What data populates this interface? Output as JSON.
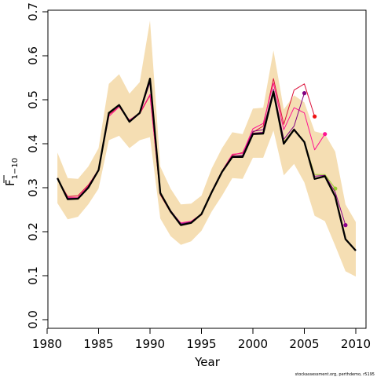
{
  "chart_data": {
    "type": "line",
    "xlabel": "Year",
    "ylabel": "F",
    "ylabel_subscript": "1−10",
    "xlim": [
      1980,
      2010
    ],
    "ylim": [
      0,
      0.7
    ],
    "x_ticks": [
      1980,
      1985,
      1990,
      1995,
      2000,
      2005,
      2010
    ],
    "y_ticks": [
      0.0,
      0.1,
      0.2,
      0.3,
      0.4,
      0.5,
      0.6,
      0.7
    ],
    "x_tick_labels": [
      "1980",
      "1985",
      "1990",
      "1995",
      "2000",
      "2005",
      "2010"
    ],
    "y_tick_labels": [
      "0.0",
      "0.1",
      "0.2",
      "0.3",
      "0.4",
      "0.5",
      "0.6",
      "0.7"
    ],
    "credit": "stockassessment.org, perthdemo, r5195",
    "band": {
      "color": "#f5deb3",
      "x": [
        1981,
        1982,
        1983,
        1984,
        1985,
        1986,
        1987,
        1988,
        1989,
        1990,
        1991,
        1992,
        1993,
        1994,
        1995,
        1996,
        1997,
        1998,
        1999,
        2000,
        2001,
        2002,
        2003,
        2004,
        2005,
        2006,
        2007,
        2008,
        2009,
        2010
      ],
      "lower": [
        0.265,
        0.228,
        0.234,
        0.262,
        0.298,
        0.408,
        0.418,
        0.39,
        0.408,
        0.415,
        0.23,
        0.19,
        0.17,
        0.178,
        0.202,
        0.246,
        0.282,
        0.322,
        0.32,
        0.368,
        0.368,
        0.43,
        0.328,
        0.354,
        0.312,
        0.236,
        0.224,
        0.168,
        0.11,
        0.098
      ],
      "upper": [
        0.38,
        0.322,
        0.32,
        0.348,
        0.39,
        0.536,
        0.558,
        0.514,
        0.54,
        0.68,
        0.348,
        0.298,
        0.262,
        0.264,
        0.282,
        0.344,
        0.39,
        0.426,
        0.422,
        0.48,
        0.482,
        0.612,
        0.478,
        0.51,
        0.494,
        0.428,
        0.422,
        0.382,
        0.262,
        0.222
      ]
    },
    "series": [
      {
        "color": "#dc143c",
        "width": 1,
        "x": [
          1981,
          1982,
          1983,
          1984,
          1985,
          1986,
          1987,
          1988,
          1989,
          1990,
          1991,
          1992,
          1993,
          1994,
          1995,
          1996,
          1997,
          1998,
          1999,
          2000,
          2001,
          2002,
          2003,
          2004,
          2005,
          2006
        ],
        "y": [
          0.32,
          0.28,
          0.282,
          0.306,
          0.34,
          0.466,
          0.484,
          0.452,
          0.468,
          0.51,
          0.284,
          0.244,
          0.218,
          0.222,
          0.238,
          0.29,
          0.336,
          0.374,
          0.38,
          0.426,
          0.44,
          0.548,
          0.444,
          0.522,
          0.536,
          0.462
        ],
        "end_color": "#ee1111"
      },
      {
        "color": "#ff1493",
        "width": 1,
        "x": [
          1981,
          1982,
          1983,
          1984,
          1985,
          1986,
          1987,
          1988,
          1989,
          1990,
          1991,
          1992,
          1993,
          1994,
          1995,
          1996,
          1997,
          1998,
          1999,
          2000,
          2001,
          2002,
          2003,
          2004,
          2005,
          2006,
          2007
        ],
        "y": [
          0.322,
          0.278,
          0.278,
          0.304,
          0.342,
          0.462,
          0.484,
          0.454,
          0.47,
          0.512,
          0.286,
          0.246,
          0.22,
          0.224,
          0.24,
          0.292,
          0.338,
          0.376,
          0.378,
          0.434,
          0.446,
          0.538,
          0.432,
          0.482,
          0.47,
          0.386,
          0.422
        ],
        "end_color": "#ff1493"
      },
      {
        "color": "#800080",
        "width": 1,
        "x": [
          1981,
          1982,
          1983,
          1984,
          1985,
          1986,
          1987,
          1988,
          1989,
          1990,
          1991,
          1992,
          1993,
          1994,
          1995,
          1996,
          1997,
          1998,
          1999,
          2000,
          2001,
          2002,
          2003,
          2004,
          2005
        ],
        "y": [
          0.322,
          0.276,
          0.276,
          0.302,
          0.34,
          0.47,
          0.488,
          0.452,
          0.47,
          0.54,
          0.288,
          0.248,
          0.218,
          0.222,
          0.24,
          0.29,
          0.336,
          0.372,
          0.374,
          0.428,
          0.432,
          0.524,
          0.41,
          0.44,
          0.515
        ],
        "end_color": "#800080"
      },
      {
        "color": "#9acd32",
        "width": 1,
        "x": [
          1981,
          1982,
          1983,
          1984,
          1985,
          1986,
          1987,
          1988,
          1989,
          1990,
          1991,
          1992,
          1993,
          1994,
          1995,
          1996,
          1997,
          1998,
          1999,
          2000,
          2001,
          2002,
          2003,
          2004,
          2005,
          2006,
          2007,
          2008
        ],
        "y": [
          0.322,
          0.276,
          0.276,
          0.302,
          0.34,
          0.47,
          0.488,
          0.452,
          0.47,
          0.545,
          0.288,
          0.248,
          0.218,
          0.222,
          0.24,
          0.29,
          0.336,
          0.372,
          0.372,
          0.424,
          0.426,
          0.518,
          0.404,
          0.434,
          0.404,
          0.33,
          0.33,
          0.298
        ],
        "end_color": "#9acd32"
      },
      {
        "color": "#8b008b",
        "width": 1,
        "x": [
          1981,
          1982,
          1983,
          1984,
          1985,
          1986,
          1987,
          1988,
          1989,
          1990,
          1991,
          1992,
          1993,
          1994,
          1995,
          1996,
          1997,
          1998,
          1999,
          2000,
          2001,
          2002,
          2003,
          2004,
          2005,
          2006,
          2007,
          2008,
          2009
        ],
        "y": [
          0.322,
          0.276,
          0.276,
          0.302,
          0.34,
          0.47,
          0.488,
          0.452,
          0.47,
          0.546,
          0.288,
          0.248,
          0.218,
          0.222,
          0.24,
          0.29,
          0.336,
          0.372,
          0.372,
          0.424,
          0.426,
          0.518,
          0.402,
          0.434,
          0.404,
          0.326,
          0.328,
          0.29,
          0.215
        ],
        "end_color": "#8b008b"
      },
      {
        "color": "#000000",
        "width": 2.3,
        "x": [
          1981,
          1982,
          1983,
          1984,
          1985,
          1986,
          1987,
          1988,
          1989,
          1990,
          1991,
          1992,
          1993,
          1994,
          1995,
          1996,
          1997,
          1998,
          1999,
          2000,
          2001,
          2002,
          2003,
          2004,
          2005,
          2006,
          2007,
          2008,
          2009,
          2010
        ],
        "y": [
          0.322,
          0.274,
          0.275,
          0.3,
          0.34,
          0.47,
          0.488,
          0.45,
          0.47,
          0.548,
          0.288,
          0.246,
          0.215,
          0.22,
          0.24,
          0.29,
          0.336,
          0.37,
          0.37,
          0.422,
          0.423,
          0.518,
          0.4,
          0.432,
          0.404,
          0.32,
          0.326,
          0.28,
          0.183,
          0.157
        ]
      }
    ]
  }
}
